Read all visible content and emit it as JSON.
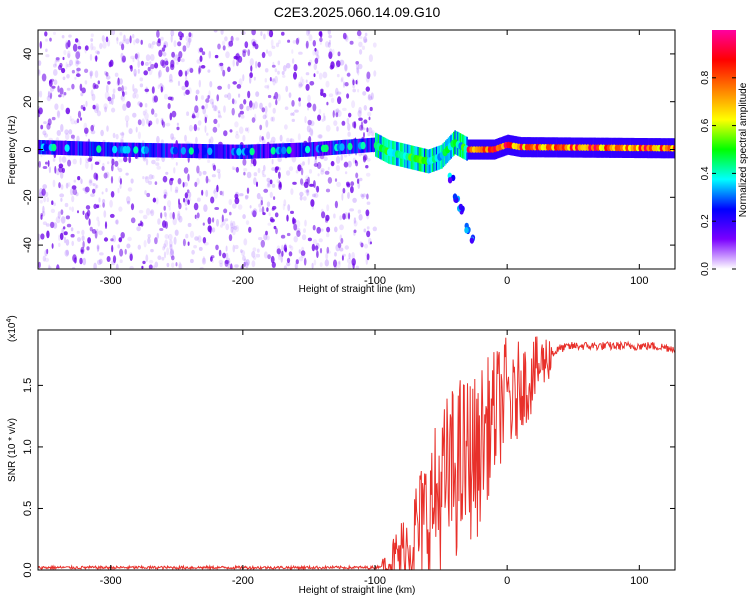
{
  "title": "C2E3.2025.060.14.09.G10",
  "chart_data": [
    {
      "type": "heatmap",
      "xlabel": "Height of straight line (km)",
      "ylabel": "Frequency (Hz)",
      "xlim": [
        -355,
        127
      ],
      "ylim": [
        -50,
        50
      ],
      "x_ticks": [
        -300,
        -200,
        -100,
        0,
        100
      ],
      "y_ticks": [
        -40,
        -20,
        0,
        20,
        40
      ],
      "colorbar": {
        "label": "Normalized spectral amplitude",
        "range": [
          0,
          1
        ],
        "ticks": [
          "0.0",
          "0.2",
          "0.4",
          "0.6",
          "0.8"
        ],
        "colors": [
          "#ffffff",
          "#7a00ff",
          "#0000ff",
          "#00ffff",
          "#00ff00",
          "#ffff00",
          "#ff8000",
          "#ff0000",
          "#ff00a0"
        ]
      },
      "noise_region_x": [
        -355,
        -100
      ],
      "ridge": [
        {
          "x": -355,
          "y": 1
        },
        {
          "x": -300,
          "y": 0
        },
        {
          "x": -200,
          "y": -1
        },
        {
          "x": -150,
          "y": 0
        },
        {
          "x": -100,
          "y": 2
        },
        {
          "x": -90,
          "y": -1
        },
        {
          "x": -75,
          "y": -3
        },
        {
          "x": -60,
          "y": -5
        },
        {
          "x": -50,
          "y": -3
        },
        {
          "x": -40,
          "y": 3
        },
        {
          "x": -30,
          "y": 0
        },
        {
          "x": -10,
          "y": 0
        },
        {
          "x": 0,
          "y": 2
        },
        {
          "x": 10,
          "y": 1
        },
        {
          "x": 127,
          "y": 0.5
        }
      ],
      "branch": [
        {
          "x": -42,
          "y": -12
        },
        {
          "x": -38,
          "y": -20
        },
        {
          "x": -35,
          "y": -25
        },
        {
          "x": -30,
          "y": -33
        },
        {
          "x": -27,
          "y": -37
        }
      ]
    },
    {
      "type": "line",
      "xlabel": "Height of straight line (km)",
      "ylabel": "SNR (10 * v/v)",
      "y_multiplier": "(x10",
      "y_multiplier_exp": "4",
      "xlim": [
        -355,
        127
      ],
      "ylim": [
        0,
        1.95
      ],
      "x_ticks": [
        -300,
        -200,
        -100,
        0,
        100
      ],
      "y_ticks": [
        "0.0",
        "0.5",
        "1.0",
        "1.5"
      ],
      "line_color": "#e8302a",
      "series": [
        {
          "x": [
            -355,
            -300,
            -250,
            -200,
            -150,
            -120,
            -100,
            -90,
            -80,
            -70,
            -60,
            -55,
            -50,
            -45,
            -40,
            -35,
            -30,
            -25,
            -22,
            -20,
            -15,
            -10,
            -5,
            0,
            5,
            10,
            15,
            20,
            30,
            40,
            50,
            70,
            90,
            110,
            127
          ],
          "y": [
            0.02,
            0.02,
            0.02,
            0.02,
            0.02,
            0.02,
            0.02,
            0.05,
            0.12,
            0.28,
            0.45,
            0.55,
            0.65,
            0.75,
            0.8,
            0.85,
            0.9,
            0.95,
            0.85,
            1.05,
            1.15,
            1.25,
            1.35,
            1.45,
            1.3,
            1.55,
            1.5,
            1.6,
            1.72,
            1.8,
            1.82,
            1.82,
            1.82,
            1.82,
            1.8
          ]
        }
      ]
    }
  ]
}
